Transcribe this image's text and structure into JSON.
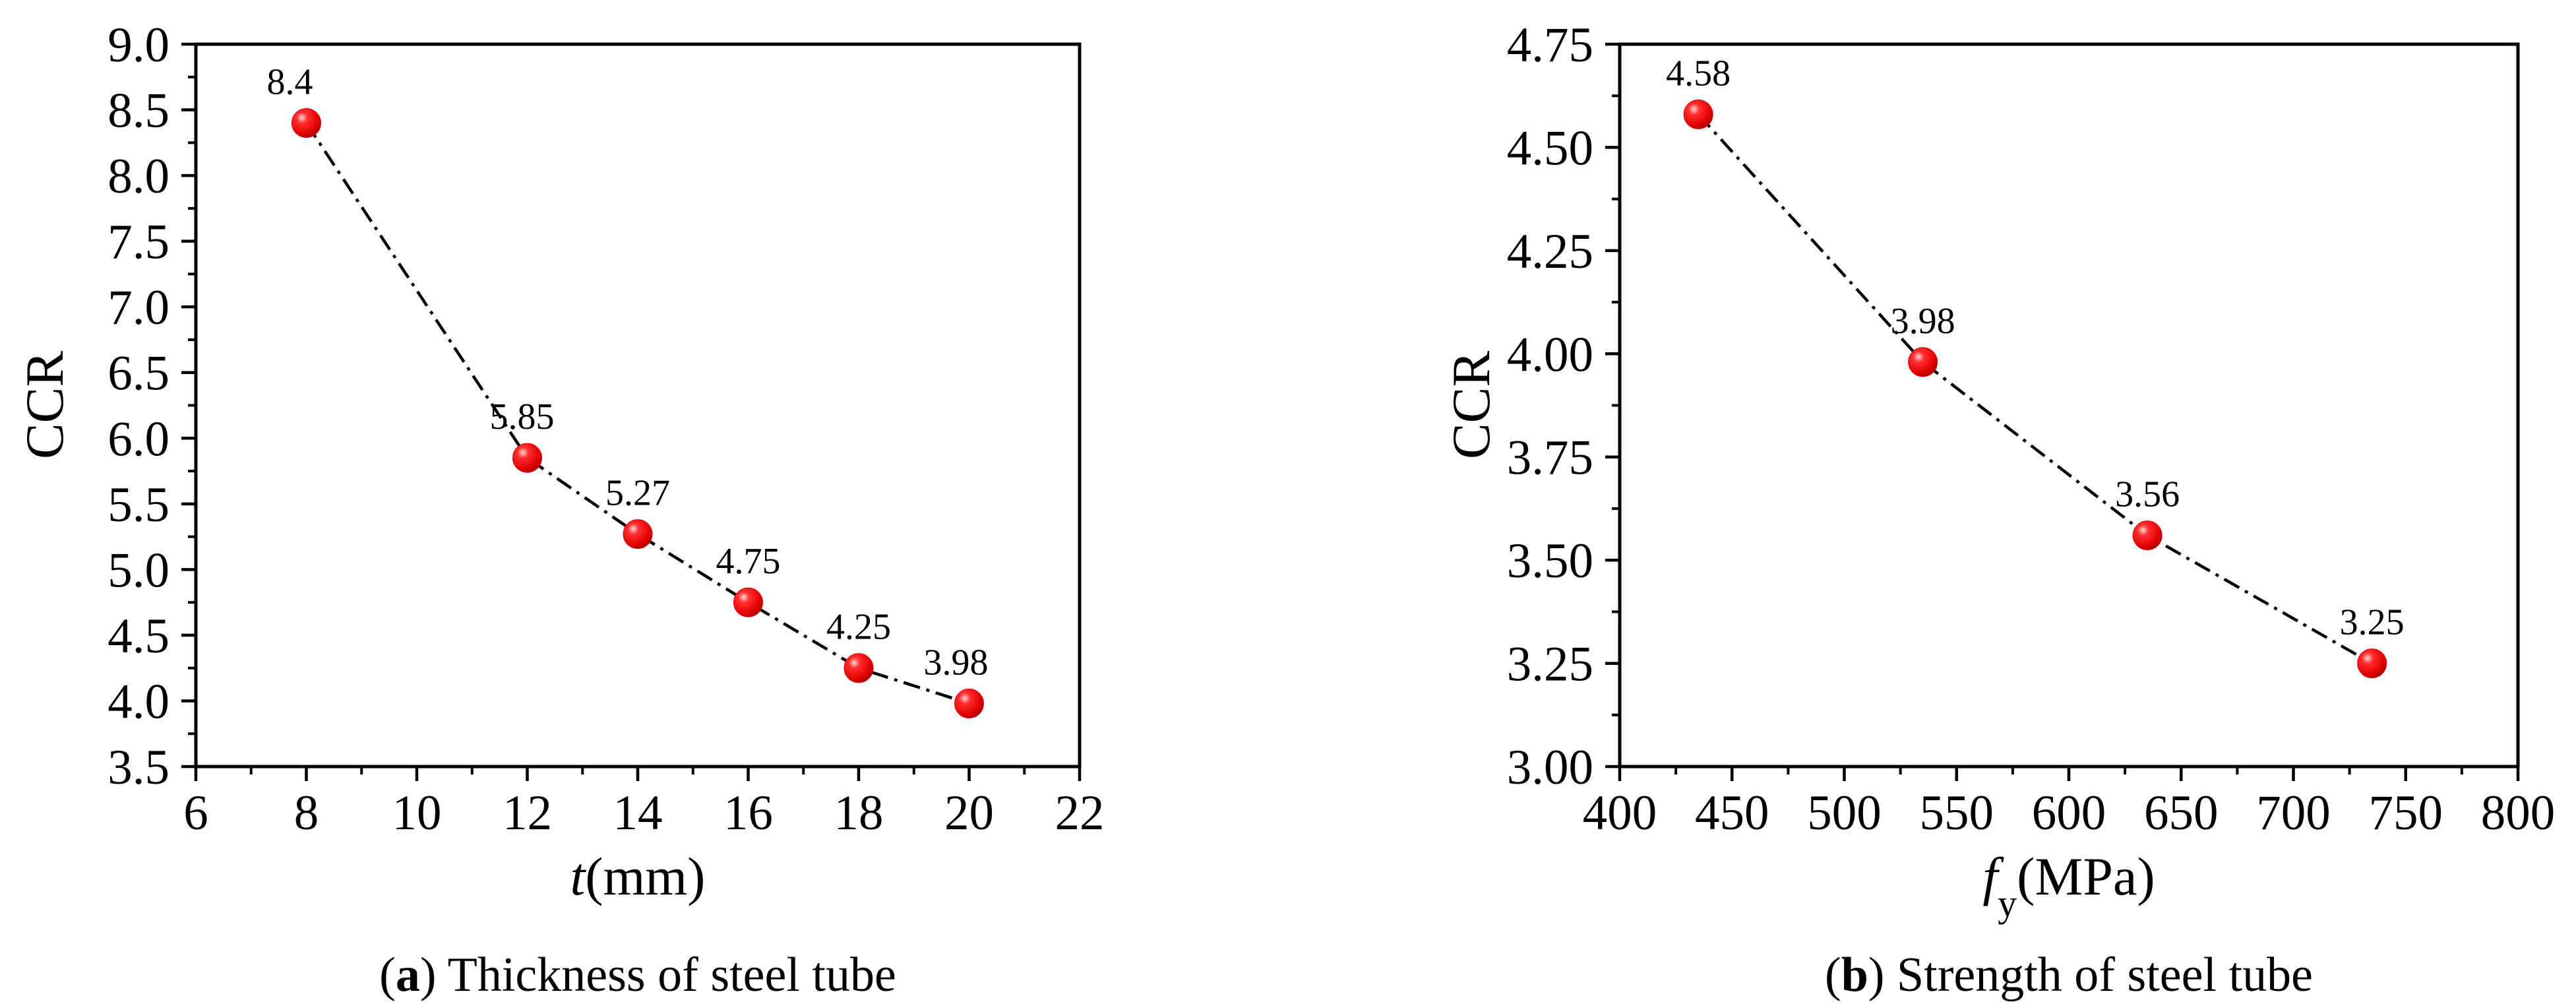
{
  "chart_data": [
    {
      "type": "line",
      "panel": "a",
      "caption": {
        "letter": "a",
        "text": "Thickness of steel tube"
      },
      "xlabel": {
        "italic": "t",
        "text": "(mm)"
      },
      "ylabel": "CCR",
      "xlim": [
        6,
        22
      ],
      "ylim": [
        3.5,
        9.0
      ],
      "xticks": [
        6,
        8,
        10,
        12,
        14,
        16,
        18,
        20,
        22
      ],
      "yticks": [
        3.5,
        4.0,
        4.5,
        5.0,
        5.5,
        6.0,
        6.5,
        7.0,
        7.5,
        8.0,
        8.5,
        9.0
      ],
      "yticks_text": [
        "3.5",
        "4.0",
        "4.5",
        "5.0",
        "5.5",
        "6.0",
        "6.5",
        "7.0",
        "7.5",
        "8.0",
        "8.5",
        "9.0"
      ],
      "x": [
        8,
        12,
        14,
        16,
        18,
        20
      ],
      "y": [
        8.4,
        5.85,
        5.27,
        4.75,
        4.25,
        3.98
      ],
      "labels": [
        "8.4",
        "5.85",
        "5.27",
        "4.75",
        "4.25",
        "3.98"
      ],
      "marker_color": "#e8000b",
      "line_style": "dash-dot",
      "grid": false
    },
    {
      "type": "line",
      "panel": "b",
      "caption": {
        "letter": "b",
        "text": "Strength of steel tube"
      },
      "xlabel": {
        "italic": "f",
        "sub": "y",
        "text": "(MPa)"
      },
      "ylabel": "CCR",
      "xlim": [
        400,
        800
      ],
      "ylim": [
        3.0,
        4.75
      ],
      "xticks": [
        400,
        450,
        500,
        550,
        600,
        650,
        700,
        750,
        800
      ],
      "yticks": [
        3.0,
        3.25,
        3.5,
        3.75,
        4.0,
        4.25,
        4.5,
        4.75
      ],
      "yticks_text": [
        "3.00",
        "3.25",
        "3.50",
        "3.75",
        "4.00",
        "4.25",
        "4.50",
        "4.75"
      ],
      "x": [
        435,
        535,
        635,
        735
      ],
      "y": [
        4.58,
        3.98,
        3.56,
        3.25
      ],
      "labels": [
        "4.58",
        "3.98",
        "3.56",
        "3.25"
      ],
      "marker_color": "#e8000b",
      "line_style": "dash-dot",
      "grid": false
    }
  ]
}
